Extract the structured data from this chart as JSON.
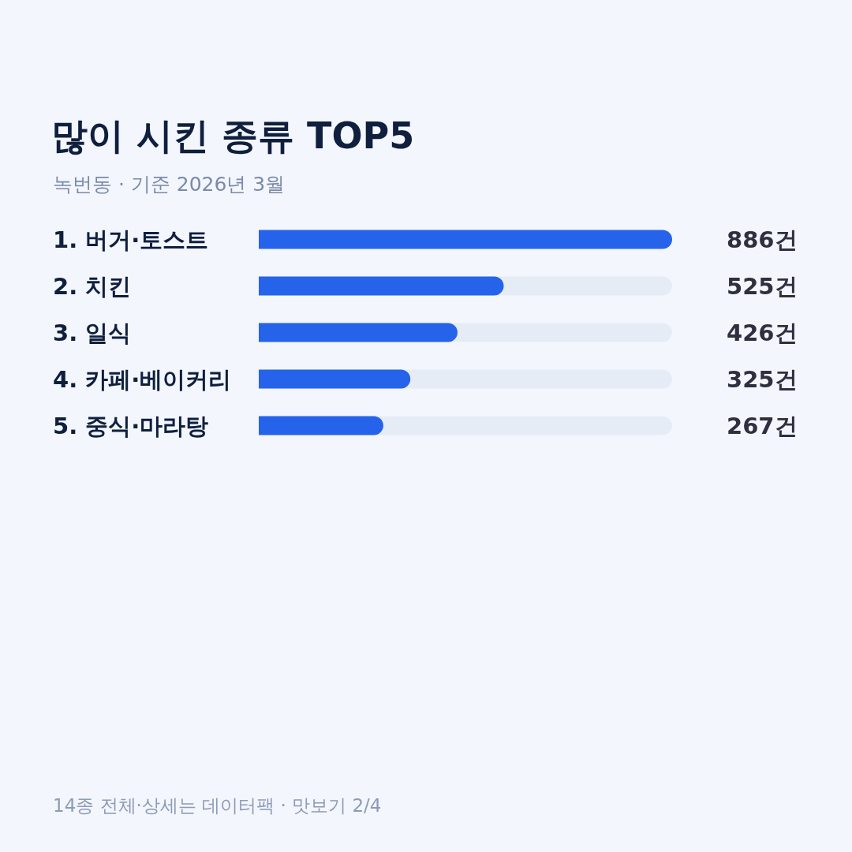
{
  "chart_data": {
    "type": "bar",
    "orientation": "horizontal",
    "title": "많이 시킨 종류 TOP5",
    "subtitle": "녹번동 · 기준 2026년 3월",
    "categories": [
      "1. 버거·토스트",
      "2. 치킨",
      "3. 일식",
      "4. 카페·베이커리",
      "5. 중식·마라탕"
    ],
    "values": [
      886,
      525,
      426,
      325,
      267
    ],
    "value_labels": [
      "886건",
      "525건",
      "426건",
      "325건",
      "267건"
    ],
    "color": "#2563eb",
    "annotations": [
      "14종 전체·상세는 데이터팩 · 맛보기 2/4"
    ]
  }
}
